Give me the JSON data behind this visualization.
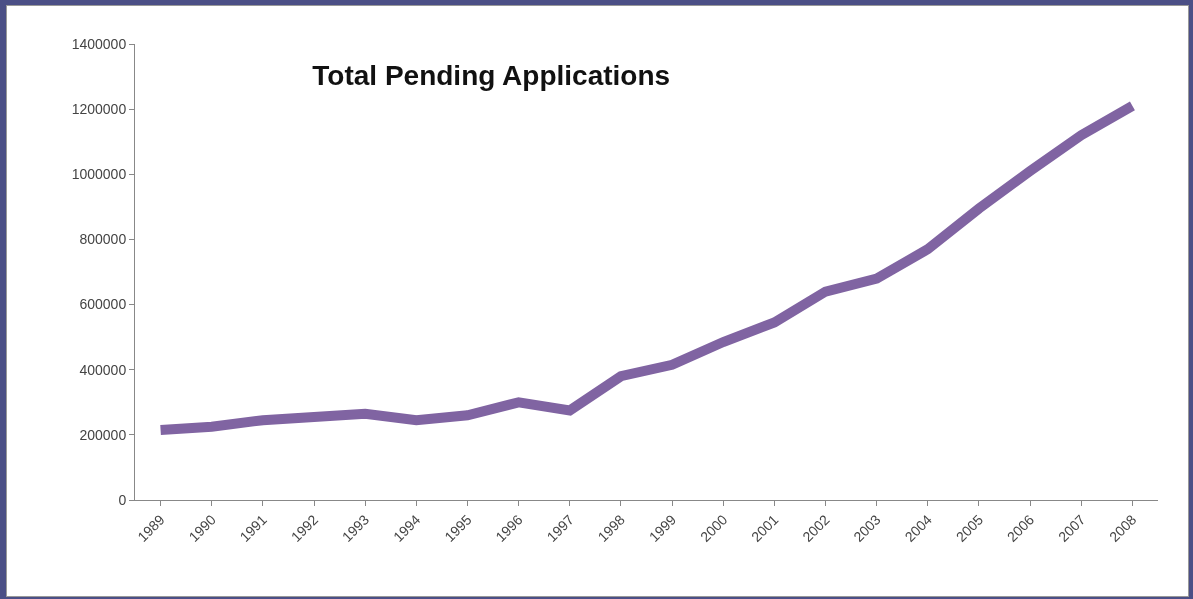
{
  "chart_data": {
    "type": "line",
    "title": "Total Pending Applications",
    "categories": [
      "1989",
      "1990",
      "1991",
      "1992",
      "1993",
      "1994",
      "1995",
      "1996",
      "1997",
      "1998",
      "1999",
      "2000",
      "2001",
      "2002",
      "2003",
      "2004",
      "2005",
      "2006",
      "2007",
      "2008"
    ],
    "series": [
      {
        "color": "#8064a2",
        "values": [
          215000,
          225000,
          245000,
          255000,
          265000,
          245000,
          260000,
          300000,
          275000,
          380000,
          415000,
          485000,
          545000,
          640000,
          680000,
          770000,
          895000,
          1010000,
          1120000,
          1210000
        ]
      }
    ],
    "ylim": [
      0,
      1400000
    ],
    "yticks": [
      0,
      200000,
      400000,
      600000,
      800000,
      1000000,
      1200000,
      1400000
    ],
    "grid": false,
    "marker": "none",
    "line_style": "solid"
  }
}
